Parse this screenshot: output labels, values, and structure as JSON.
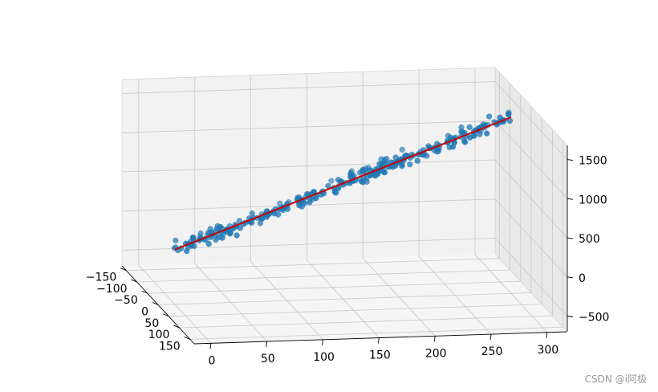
{
  "chart_data": {
    "type": "scatter",
    "projection": "3d",
    "x": {
      "ticks": [
        -150,
        -100,
        -50,
        0,
        50,
        100,
        150
      ],
      "labels": [
        "−150",
        "−100",
        "−50",
        "0",
        "50",
        "100",
        "150"
      ]
    },
    "y": {
      "ticks": [
        0,
        50,
        100,
        150,
        200,
        250,
        300
      ],
      "labels": [
        "0",
        "50",
        "100",
        "150",
        "200",
        "250",
        "300"
      ]
    },
    "z": {
      "ticks": [
        -500,
        0,
        500,
        1000,
        1500
      ],
      "labels": [
        "−500",
        "0",
        "500",
        "1000",
        "1500"
      ]
    },
    "grid": true,
    "fit_line": {
      "color": "#cc0000",
      "start": {
        "x": 0,
        "y": 0,
        "z": 0
      },
      "end": {
        "x": 0,
        "y": 300,
        "z": 1550
      }
    },
    "point_color": "#1f77b4",
    "point_count": 300
  },
  "watermark": "CSDN @i阿极"
}
